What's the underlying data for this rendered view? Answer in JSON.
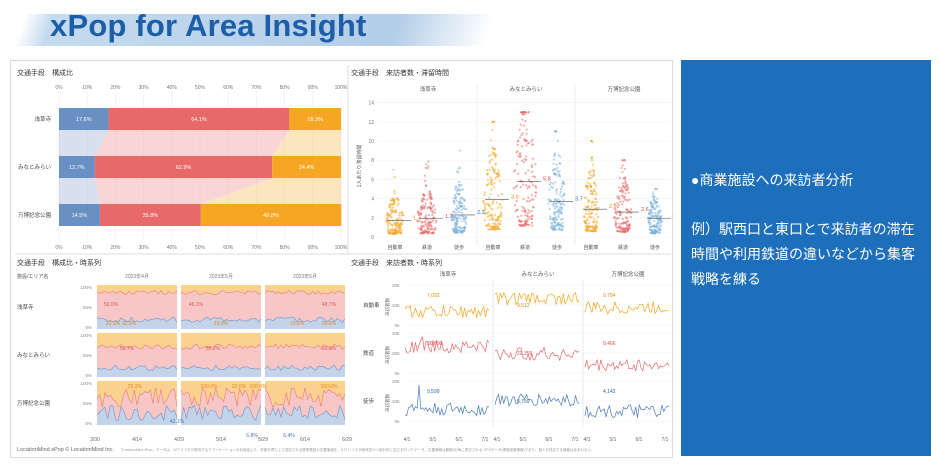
{
  "header": {
    "title": "xPop for Area Insight"
  },
  "composition": {
    "title": "交通手段　構成比",
    "ticks": [
      "0%",
      "10%",
      "20%",
      "30%",
      "40%",
      "50%",
      "60%",
      "70%",
      "80%",
      "90%",
      "100%"
    ],
    "rows": [
      {
        "name": "浅草寺",
        "values": [
          17.6,
          64.1,
          18.3
        ],
        "labels": [
          "17.6%",
          "64.1%",
          "18.3%"
        ]
      },
      {
        "name": "みなとみらい",
        "values": [
          12.7,
          62.9,
          24.4
        ],
        "labels": [
          "12.7%",
          "62.9%",
          "24.4%"
        ]
      },
      {
        "name": "万博記念公園",
        "values": [
          14.5,
          35.8,
          49.8
        ],
        "labels": [
          "14.5%",
          "35.8%",
          "49.8%"
        ]
      }
    ],
    "colors": [
      "#6a8fc2",
      "#e8696a",
      "#f5a623"
    ]
  },
  "dwell": {
    "title": "交通手段　来訪者数・滞留時間",
    "ylabel": "1人あたり滞留時間",
    "yticks": [
      "0",
      "2",
      "4",
      "6",
      "8",
      "10",
      "12",
      "14"
    ],
    "groups": [
      "浅草寺",
      "みなとみらい",
      "万博記念公園"
    ],
    "modes": [
      "自動車",
      "鉄道",
      "徒歩"
    ],
    "medians": [
      [
        "1.7",
        "1.9",
        "2.3"
      ],
      [
        "3.9",
        "5.8",
        "3.7"
      ],
      [
        "2.9",
        "2.6",
        "1.9"
      ]
    ]
  },
  "comp_ts": {
    "title": "交通手段　構成比・時系列",
    "row_header": "施設/エリア名",
    "months": [
      "2023年4月",
      "2023年5月",
      "2023年6月"
    ],
    "places": [
      "浅草寺",
      "みなとみらい",
      "万博記念公園"
    ],
    "yticks": [
      "100%",
      "50%",
      "0%"
    ],
    "xticks": [
      "3/30",
      "4/14",
      "4/29",
      "5/14",
      "5/29",
      "6/14",
      "6/29"
    ],
    "labels": [
      [
        "56.0%",
        "46.1%",
        "48.7%"
      ],
      [
        "20.3%",
        "32.9%",
        "19.0%",
        "19.6%",
        "30.9%"
      ],
      [
        "52.7%",
        "55.2%",
        "50.8%"
      ],
      [
        "29.2%",
        "100.0%",
        "22.0%",
        "100.0%",
        "100.0%"
      ],
      [
        "42.1%",
        "6.8%",
        "6.4%"
      ]
    ]
  },
  "visitors_ts": {
    "title": "交通手段　来訪者数・時系列",
    "groups": [
      "浅草寺",
      "みなとみらい",
      "万博記念公園"
    ],
    "modes": [
      "自動車",
      "鉄道",
      "徒歩"
    ],
    "ylabel": "来訪者数",
    "yticks": [
      [
        "20K",
        "10K",
        "0K"
      ],
      [
        "40K",
        "20K",
        "0K"
      ],
      [
        "20K",
        "10K",
        "0K"
      ]
    ],
    "xticks": [
      "4/1",
      "5/1",
      "6/1",
      "7/1",
      "4/1",
      "5/1",
      "6/1",
      "7/1",
      "4/1",
      "5/1",
      "6/1",
      "7/1"
    ],
    "values": {
      "auto": [
        "7,092",
        "9,513",
        "9,784"
      ],
      "rail": [
        "30,600",
        "22,359",
        "9,466"
      ],
      "walk": [
        "9,599",
        "5,759",
        "4,142"
      ]
    }
  },
  "footer": {
    "copyright": "LocationMind xPop © LocationMind Inc.",
    "note": "「LocationMind xPop」データは、NTTドコモが提供するアプリケーションの利用者より、許諾を得た上で送信される携帯電話の位置情報を、NTTドコモが総体的かつ統計的に加工を行ったデータ。位置情報は最短5分毎に測位される GPSデータ(緯度経度情報)であり、個人を特定する情報は含まれない。"
  },
  "side_panel": {
    "bullet": "●商業施設への来訪者分析",
    "body": "例）駅西口と東口とで来訪者の滞在時間や利用鉄道の違いなどから集客戦略を練る"
  }
}
